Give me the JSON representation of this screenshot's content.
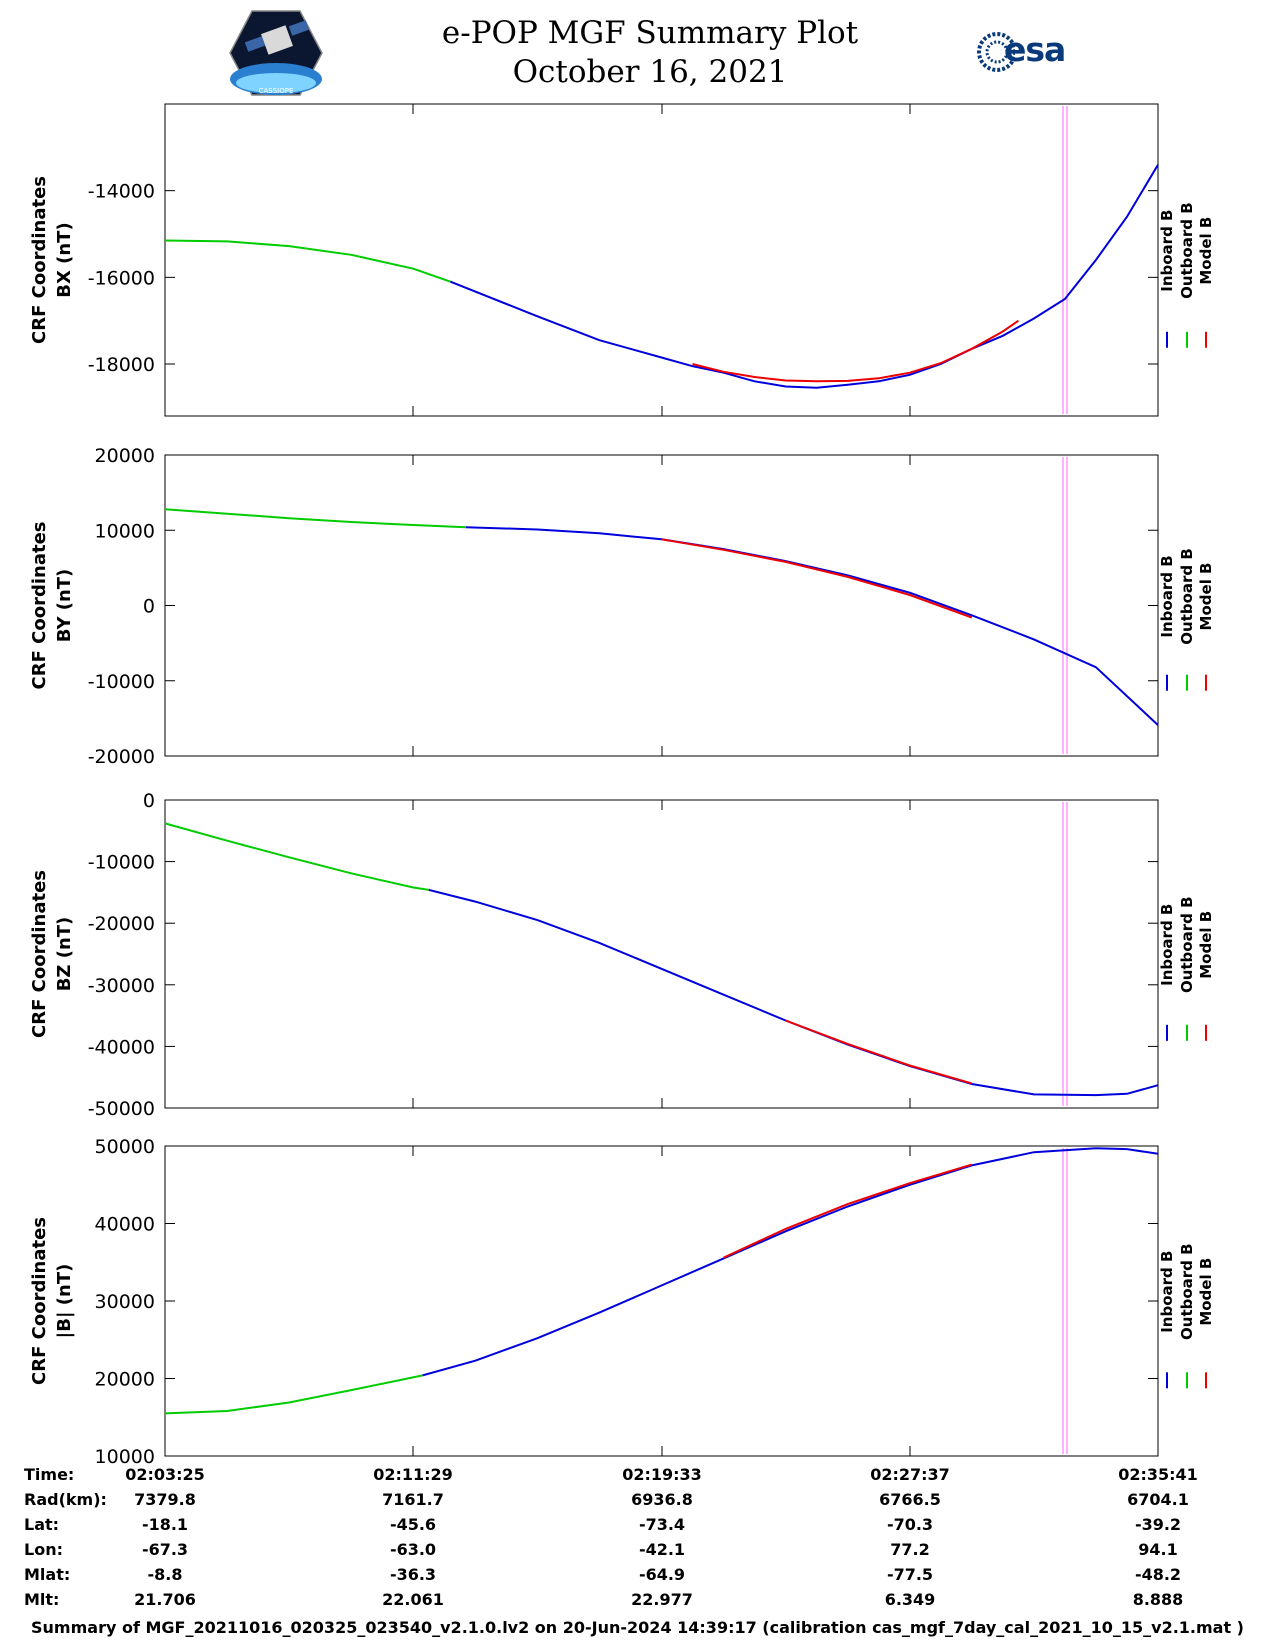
{
  "header": {
    "title": "e-POP MGF Summary Plot",
    "date": "October 16, 2021",
    "logo_left_text": "CASSIOPE",
    "logo_right_text": "esa"
  },
  "legend": [
    "Inboard B",
    "Outboard B",
    "Model B"
  ],
  "colors": {
    "inboard": "#0000dd",
    "outboard": "#00cc00",
    "model": "#ee0000",
    "marker": "#ff66ff"
  },
  "chart_data": [
    {
      "type": "line",
      "ylabel": [
        "CRF Coordinates",
        "BX (nT)"
      ],
      "yticks": [
        -14000,
        -16000,
        -18000
      ],
      "ylim": [
        -19200,
        -12000
      ],
      "xticks": [
        "02:03:25",
        "02:11:29",
        "02:19:33",
        "02:27:37",
        "02:35:41"
      ],
      "series": [
        {
          "name": "Outboard B",
          "x": [
            0,
            2,
            4,
            6,
            8,
            9.2
          ],
          "y": [
            -15150,
            -15170,
            -15280,
            -15480,
            -15800,
            -16100
          ]
        },
        {
          "name": "Inboard B",
          "x": [
            9.2,
            12,
            14,
            16,
            17,
            18,
            19,
            20,
            21,
            22,
            23,
            24,
            25,
            26,
            27,
            28,
            29,
            30,
            31,
            32
          ],
          "y": [
            -16100,
            -16900,
            -17450,
            -17850,
            -18050,
            -18200,
            -18400,
            -18520,
            -18550,
            -18480,
            -18400,
            -18250,
            -18000,
            -17650,
            -17350,
            -16950,
            -16500,
            -15600,
            -14600,
            -13400
          ]
        },
        {
          "name": "Model B",
          "x": [
            17,
            18,
            19,
            20,
            21,
            22,
            23,
            24,
            25,
            26,
            27,
            27.5
          ],
          "y": [
            -18000,
            -18180,
            -18300,
            -18380,
            -18400,
            -18390,
            -18330,
            -18200,
            -17980,
            -17650,
            -17250,
            -17000
          ]
        }
      ]
    },
    {
      "type": "line",
      "ylabel": [
        "CRF Coordinates",
        "BY (nT)"
      ],
      "yticks": [
        20000,
        10000,
        0,
        -10000,
        -20000
      ],
      "ylim": [
        -20000,
        20000
      ],
      "xticks": [
        "02:03:25",
        "02:11:29",
        "02:19:33",
        "02:27:37",
        "02:35:41"
      ],
      "series": [
        {
          "name": "Outboard B",
          "x": [
            0,
            2,
            4,
            6,
            8,
            9.7
          ],
          "y": [
            12800,
            12200,
            11600,
            11100,
            10700,
            10400
          ]
        },
        {
          "name": "Inboard B",
          "x": [
            9.7,
            12,
            14,
            16,
            18,
            20,
            22,
            24,
            26,
            28,
            30,
            32
          ],
          "y": [
            10400,
            10100,
            9600,
            8800,
            7500,
            5900,
            4000,
            1700,
            -1300,
            -4500,
            -8200,
            -15900
          ]
        },
        {
          "name": "Model B",
          "x": [
            16,
            18,
            20,
            22,
            24,
            26
          ],
          "y": [
            8800,
            7400,
            5800,
            3800,
            1400,
            -1600
          ]
        }
      ]
    },
    {
      "type": "line",
      "ylabel": [
        "CRF Coordinates",
        "BZ (nT)"
      ],
      "yticks": [
        0,
        -10000,
        -20000,
        -30000,
        -40000,
        -50000
      ],
      "ylim": [
        -50000,
        0
      ],
      "xticks": [
        "02:03:25",
        "02:11:29",
        "02:19:33",
        "02:27:37",
        "02:35:41"
      ],
      "series": [
        {
          "name": "Outboard B",
          "x": [
            0,
            2,
            4,
            6,
            8,
            8.5
          ],
          "y": [
            -3800,
            -6600,
            -9300,
            -11900,
            -14200,
            -14600
          ]
        },
        {
          "name": "Inboard B",
          "x": [
            8.5,
            10,
            12,
            14,
            16,
            18,
            20,
            22,
            24,
            26,
            28,
            30,
            31,
            32
          ],
          "y": [
            -14600,
            -16500,
            -19500,
            -23200,
            -27400,
            -31600,
            -35800,
            -39700,
            -43200,
            -46100,
            -47800,
            -47900,
            -47700,
            -46300
          ]
        },
        {
          "name": "Model B",
          "x": [
            20,
            22,
            24,
            26
          ],
          "y": [
            -35800,
            -39600,
            -43100,
            -46000
          ]
        }
      ]
    },
    {
      "type": "line",
      "ylabel": [
        "CRF Coordinates",
        "|B| (nT)"
      ],
      "yticks": [
        50000,
        40000,
        30000,
        20000,
        10000
      ],
      "ylim": [
        10000,
        50000
      ],
      "xticks": [
        "02:03:25",
        "02:11:29",
        "02:19:33",
        "02:27:37",
        "02:35:41"
      ],
      "series": [
        {
          "name": "Outboard B",
          "x": [
            0,
            2,
            4,
            6,
            8.3
          ],
          "y": [
            15500,
            15800,
            16900,
            18500,
            20400
          ]
        },
        {
          "name": "Inboard B",
          "x": [
            8.3,
            10,
            12,
            14,
            16,
            18,
            20,
            22,
            24,
            26,
            28,
            30,
            31,
            32
          ],
          "y": [
            20400,
            22300,
            25200,
            28500,
            32000,
            35500,
            39000,
            42200,
            45000,
            47500,
            49200,
            49700,
            49600,
            49000
          ]
        },
        {
          "name": "Model B",
          "x": [
            18,
            20,
            22,
            24,
            26
          ],
          "y": [
            35600,
            39300,
            42500,
            45200,
            47600
          ]
        }
      ]
    }
  ],
  "ephemeris": {
    "labels": [
      "Time:",
      "Rad(km):",
      "Lat:",
      "Lon:",
      "Mlat:",
      "Mlt:"
    ],
    "columns": [
      [
        "02:03:25",
        "7379.8",
        "-18.1",
        "-67.3",
        "-8.8",
        "21.706"
      ],
      [
        "02:11:29",
        "7161.7",
        "-45.6",
        "-63.0",
        "-36.3",
        "22.061"
      ],
      [
        "02:19:33",
        "6936.8",
        "-73.4",
        "-42.1",
        "-64.9",
        "22.977"
      ],
      [
        "02:27:37",
        "6766.5",
        "-70.3",
        "77.2",
        "-77.5",
        "6.349"
      ],
      [
        "02:35:41",
        "6704.1",
        "-39.2",
        "94.1",
        "-48.2",
        "8.888"
      ]
    ]
  },
  "footer": "Summary of MGF_20211016_020325_023540_v2.1.0.lv2 on 20-Jun-2024 14:39:17 (calibration cas_mgf_7day_cal_2021_10_15_v2.1.mat )"
}
